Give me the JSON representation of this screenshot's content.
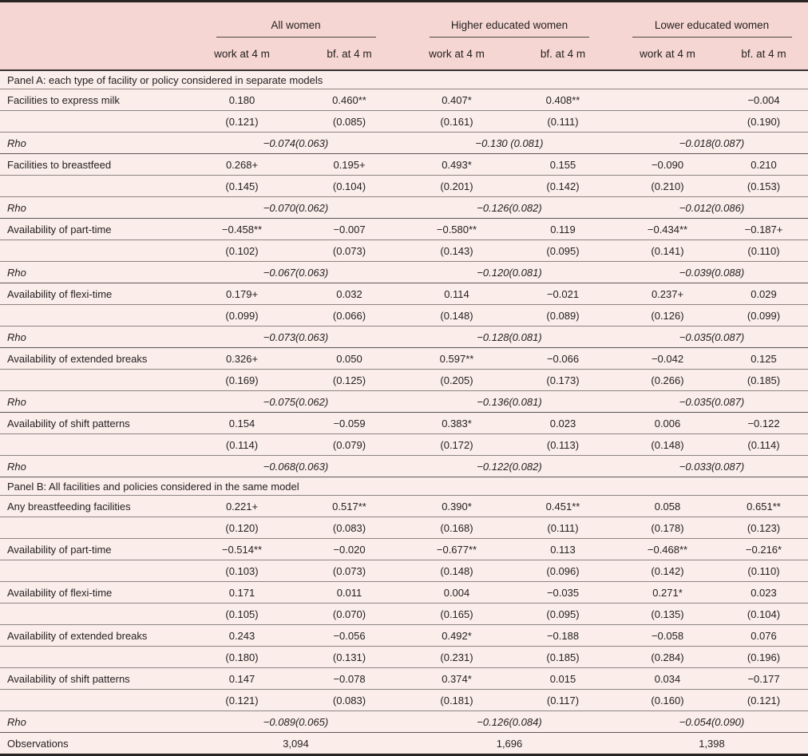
{
  "colors": {
    "header_bg": "#f5d6d2",
    "body_bg": "#faedea",
    "border_heavy": "#272423",
    "border_medium": "#5d5755",
    "border_light": "#8d8581",
    "text": "#262221"
  },
  "header": {
    "groups": [
      "All women",
      "Higher educated women",
      "Lower educated women"
    ],
    "sub_labels": [
      "work at 4 m",
      "bf. at 4 m",
      "work at 4 m",
      "bf. at 4 m",
      "work at 4 m",
      "bf. at 4 m"
    ]
  },
  "rho_label": "Rho",
  "panel_a": {
    "title": "Panel A: each type of facility or policy considered in separate models",
    "rows": [
      {
        "label": "Facilities to express milk",
        "coefs": [
          "0.180",
          "0.460**",
          "0.407*",
          "0.408**",
          "",
          "−0.004"
        ],
        "ses": [
          "(0.121)",
          "(0.085)",
          "(0.161)",
          "(0.111)",
          "",
          "(0.190)"
        ],
        "rho": [
          "−0.074(0.063)",
          "−0.130 (0.081)",
          "−0.018(0.087)"
        ]
      },
      {
        "label": "Facilities to breastfeed",
        "coefs": [
          "0.268+",
          "0.195+",
          "0.493*",
          "0.155",
          "−0.090",
          "0.210"
        ],
        "ses": [
          "(0.145)",
          "(0.104)",
          "(0.201)",
          "(0.142)",
          "(0.210)",
          "(0.153)"
        ],
        "rho": [
          "−0.070(0.062)",
          "−0.126(0.082)",
          "−0.012(0.086)"
        ]
      },
      {
        "label": "Availability of part-time",
        "coefs": [
          "−0.458**",
          "−0.007",
          "−0.580**",
          "0.119",
          "−0.434**",
          "−0.187+"
        ],
        "ses": [
          "(0.102)",
          "(0.073)",
          "(0.143)",
          "(0.095)",
          "(0.141)",
          "(0.110)"
        ],
        "rho": [
          "−0.067(0.063)",
          "−0.120(0.081)",
          "−0.039(0.088)"
        ]
      },
      {
        "label": "Availability of flexi-time",
        "coefs": [
          "0.179+",
          "0.032",
          "0.114",
          "−0.021",
          "0.237+",
          "0.029"
        ],
        "ses": [
          "(0.099)",
          "(0.066)",
          "(0.148)",
          "(0.089)",
          "(0.126)",
          "(0.099)"
        ],
        "rho": [
          "−0.073(0.063)",
          "−0.128(0.081)",
          "−0.035(0.087)"
        ]
      },
      {
        "label": "Availability of extended breaks",
        "coefs": [
          "0.326+",
          "0.050",
          "0.597**",
          "−0.066",
          "−0.042",
          "0.125"
        ],
        "ses": [
          "(0.169)",
          "(0.125)",
          "(0.205)",
          "(0.173)",
          "(0.266)",
          "(0.185)"
        ],
        "rho": [
          "−0.075(0.062)",
          "−0.136(0.081)",
          "−0.035(0.087)"
        ]
      },
      {
        "label": "Availability of shift patterns",
        "coefs": [
          "0.154",
          "−0.059",
          "0.383*",
          "0.023",
          "0.006",
          "−0.122"
        ],
        "ses": [
          "(0.114)",
          "(0.079)",
          "(0.172)",
          "(0.113)",
          "(0.148)",
          "(0.114)"
        ],
        "rho": [
          "−0.068(0.063)",
          "−0.122(0.082)",
          "−0.033(0.087)"
        ]
      }
    ]
  },
  "panel_b": {
    "title": "Panel B: All facilities and policies considered in the same model",
    "rows": [
      {
        "label": "Any breastfeeding facilities",
        "coefs": [
          "0.221+",
          "0.517**",
          "0.390*",
          "0.451**",
          "0.058",
          "0.651**"
        ],
        "ses": [
          "(0.120)",
          "(0.083)",
          "(0.168)",
          "(0.111)",
          "(0.178)",
          "(0.123)"
        ]
      },
      {
        "label": "Availability of part-time",
        "coefs": [
          "−0.514**",
          "−0.020",
          "−0.677**",
          "0.113",
          "−0.468**",
          "−0.216*"
        ],
        "ses": [
          "(0.103)",
          "(0.073)",
          "(0.148)",
          "(0.096)",
          "(0.142)",
          "(0.110)"
        ]
      },
      {
        "label": "Availability of flexi-time",
        "coefs": [
          "0.171",
          "0.011",
          "0.004",
          "−0.035",
          "0.271*",
          "0.023"
        ],
        "ses": [
          "(0.105)",
          "(0.070)",
          "(0.165)",
          "(0.095)",
          "(0.135)",
          "(0.104)"
        ]
      },
      {
        "label": "Availability of extended breaks",
        "coefs": [
          "0.243",
          "−0.056",
          "0.492*",
          "−0.188",
          "−0.058",
          "0.076"
        ],
        "ses": [
          "(0.180)",
          "(0.131)",
          "(0.231)",
          "(0.185)",
          "(0.284)",
          "(0.196)"
        ]
      },
      {
        "label": "Availability of shift patterns",
        "coefs": [
          "0.147",
          "−0.078",
          "0.374*",
          "0.015",
          "0.034",
          "−0.177"
        ],
        "ses": [
          "(0.121)",
          "(0.083)",
          "(0.181)",
          "(0.117)",
          "(0.160)",
          "(0.121)"
        ]
      }
    ],
    "rho": [
      "−0.089(0.065)",
      "−0.126(0.084)",
      "−0.054(0.090)"
    ]
  },
  "observations": {
    "label": "Observations",
    "values": [
      "3,094",
      "1,696",
      "1,398"
    ]
  }
}
